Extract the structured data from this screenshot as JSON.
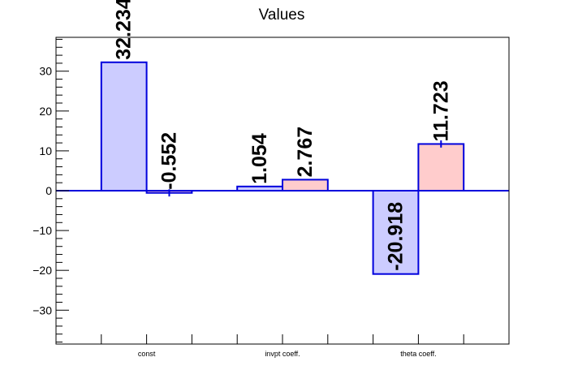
{
  "chart_data": {
    "type": "bar",
    "title": "Values",
    "xlabel": "",
    "ylabel": "",
    "categories": [
      "const",
      "invpt coeff.",
      "theta coeff."
    ],
    "ylim": [
      -38.5,
      38.5
    ],
    "yticks": [
      -30,
      -20,
      -10,
      0,
      10,
      20,
      30
    ],
    "ytick_labels": [
      "−30",
      "−20",
      "−10",
      "0",
      "10",
      "20",
      "30"
    ],
    "grid": false,
    "legend": false,
    "colors": {
      "series_a_fill": "#ccccff",
      "series_b_fill": "#ffcccc",
      "stroke": "#0000dd",
      "zero_line": "#0000dd",
      "frame": "#000000"
    },
    "bars": [
      {
        "category": "const",
        "series": "a",
        "value": 32.234,
        "label": "32.234",
        "error": 0
      },
      {
        "category": "const",
        "series": "b",
        "value": -0.552,
        "label": "-0.552",
        "error": 0.9
      },
      {
        "category": "invpt coeff.",
        "series": "a",
        "value": 1.054,
        "label": "1.054",
        "error": 0
      },
      {
        "category": "invpt coeff.",
        "series": "b",
        "value": 2.767,
        "label": "2.767",
        "error": 0
      },
      {
        "category": "theta coeff.",
        "series": "a",
        "value": -20.918,
        "label": "-20.918",
        "error": 0
      },
      {
        "category": "theta coeff.",
        "series": "b",
        "value": 11.723,
        "label": "11.723",
        "error": 0.9
      }
    ]
  }
}
